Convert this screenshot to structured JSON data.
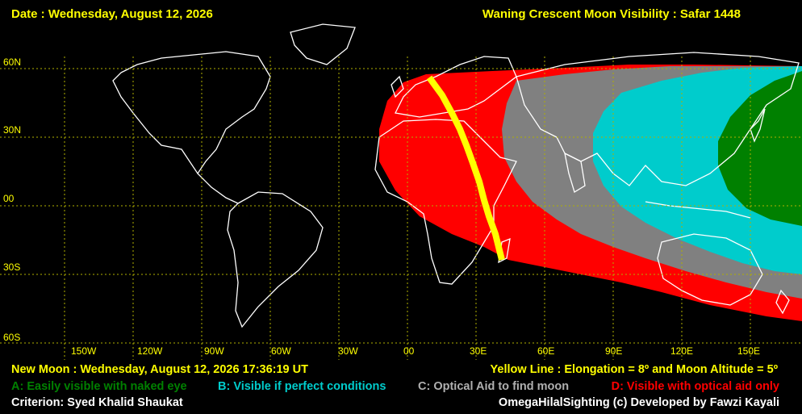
{
  "header": {
    "date": "Date : Wednesday, August 12, 2026",
    "title": "Waning Crescent Moon Visibility : Safar 1448"
  },
  "map": {
    "lat_labels": [
      "60N",
      "30N",
      "00",
      "30S",
      "60S"
    ],
    "lon_labels": [
      "150W",
      "120W",
      "90W",
      "60W",
      "30W",
      "00",
      "30E",
      "60E",
      "90E",
      "120E",
      "150E"
    ]
  },
  "footer": {
    "new_moon": "New Moon : Wednesday, August 12, 2026  17:36:19  UT",
    "yellow_line": "Yellow Line : Elongation = 8º  and Moon Altitude = 5º",
    "legend": {
      "a": "A: Easily visible with naked eye",
      "b": "B: Visible if perfect conditions",
      "c": "C: Optical Aid to find moon",
      "d": "D: Visible with optical aid only"
    },
    "criterion": "Criterion: Syed Khalid Shaukat",
    "credit": "OmegaHilalSighting  (c)  Developed by Fawzi Kayali"
  },
  "colors": {
    "text_yellow": "#ffff00",
    "zone_a": "#008000",
    "zone_b": "#00cccc",
    "zone_c": "#808080",
    "zone_d": "#ff0000",
    "yellow_line": "#ffff00",
    "grid": "#b0b000",
    "coast": "#ffffff"
  }
}
